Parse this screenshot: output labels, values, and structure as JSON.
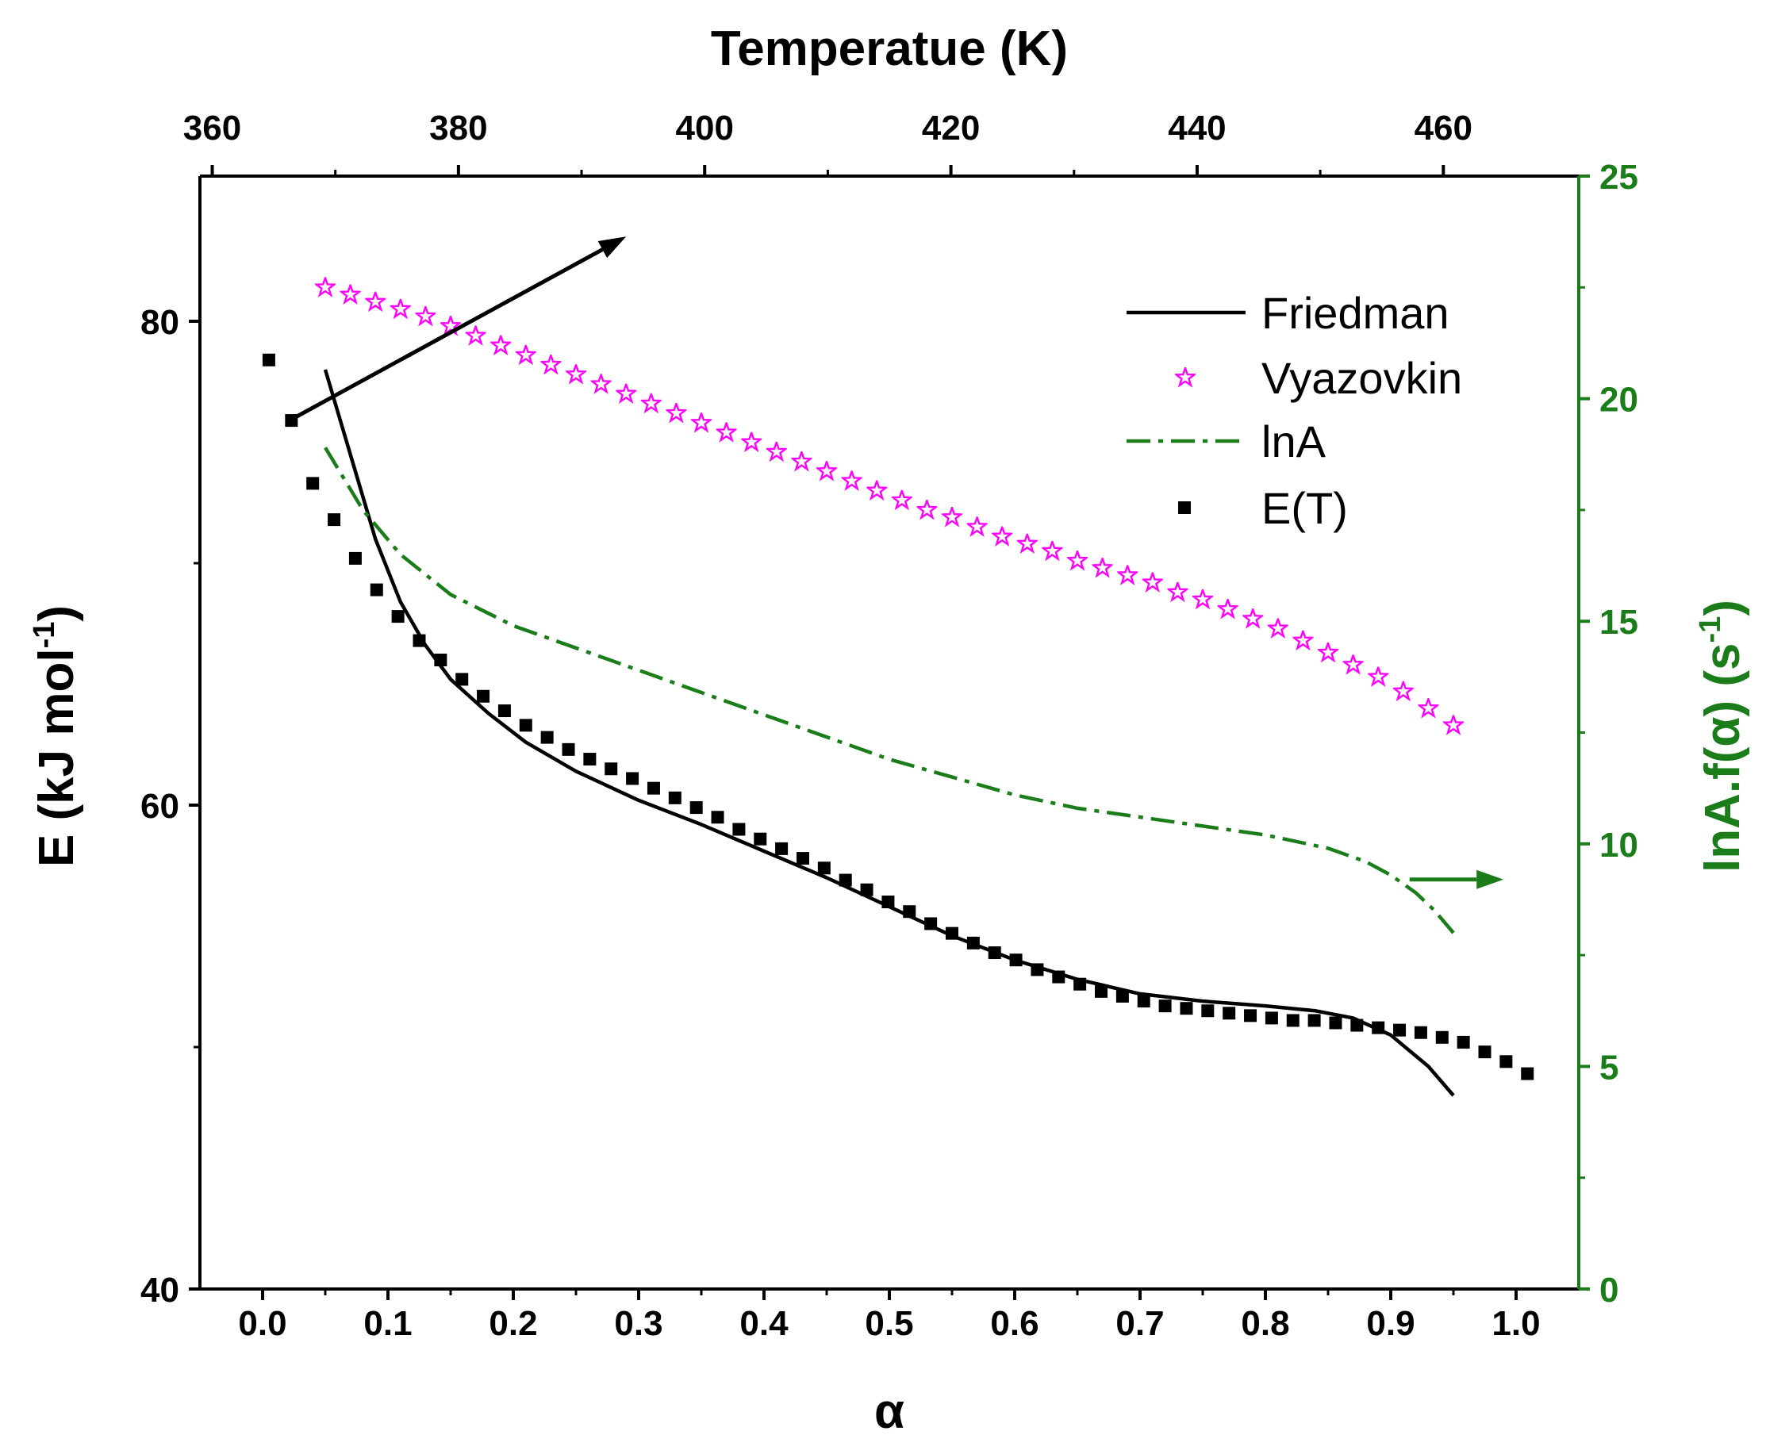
{
  "chart_data": {
    "type": "line",
    "title": "",
    "xlabel": "α",
    "x2label": "Temperatue (K)",
    "ylabel_left": "E (kJ mol",
    "ylabel_left_sup": "-1",
    "ylabel_left_end": ")",
    "ylabel_right": "lnA.f(α) (s",
    "ylabel_right_sup": "-1",
    "ylabel_right_end": ")",
    "xlim": [
      -0.05,
      1.05
    ],
    "x2lim": [
      359.0,
      471.0
    ],
    "ylim_left": [
      40,
      86
    ],
    "ylim_right": [
      0,
      25
    ],
    "xticks": [
      "0.0",
      "0.1",
      "0.2",
      "0.3",
      "0.4",
      "0.5",
      "0.6",
      "0.7",
      "0.8",
      "0.9",
      "1.0"
    ],
    "x2ticks": [
      "360",
      "380",
      "400",
      "420",
      "440",
      "460"
    ],
    "yticks_left": [
      "40",
      "60",
      "80"
    ],
    "yticks_right": [
      "0",
      "5",
      "10",
      "15",
      "20",
      "25"
    ],
    "colors": {
      "friedman": "#000000",
      "vyazovkin": "#ff00ff",
      "lnA": "#1a7d1a",
      "ET": "#000000",
      "right_axis": "#1a7d1a"
    },
    "legend": [
      "Friedman",
      "Vyazovkin",
      "lnA",
      "E(T)"
    ],
    "legend_position": "top-right",
    "series": [
      {
        "name": "Friedman",
        "axis": "left",
        "style": "solid",
        "x": [
          0.05,
          0.07,
          0.09,
          0.11,
          0.13,
          0.15,
          0.18,
          0.21,
          0.25,
          0.3,
          0.35,
          0.4,
          0.45,
          0.5,
          0.55,
          0.6,
          0.65,
          0.7,
          0.75,
          0.8,
          0.84,
          0.87,
          0.9,
          0.93,
          0.95
        ],
        "y": [
          78.0,
          74.5,
          71.0,
          68.4,
          66.6,
          65.2,
          63.8,
          62.6,
          61.4,
          60.2,
          59.2,
          58.1,
          57.0,
          55.8,
          54.6,
          53.6,
          52.8,
          52.2,
          51.9,
          51.7,
          51.5,
          51.2,
          50.5,
          49.2,
          48.0
        ]
      },
      {
        "name": "Vyazovkin",
        "axis": "left",
        "style": "star",
        "x": [
          0.05,
          0.07,
          0.09,
          0.11,
          0.13,
          0.15,
          0.17,
          0.19,
          0.21,
          0.23,
          0.25,
          0.27,
          0.29,
          0.31,
          0.33,
          0.35,
          0.37,
          0.39,
          0.41,
          0.43,
          0.45,
          0.47,
          0.49,
          0.51,
          0.53,
          0.55,
          0.57,
          0.59,
          0.61,
          0.63,
          0.65,
          0.67,
          0.69,
          0.71,
          0.73,
          0.75,
          0.77,
          0.79,
          0.81,
          0.83,
          0.85,
          0.87,
          0.89,
          0.91,
          0.93,
          0.95
        ],
        "y": [
          81.4,
          81.1,
          80.8,
          80.5,
          80.2,
          79.8,
          79.4,
          79.0,
          78.6,
          78.2,
          77.8,
          77.4,
          77.0,
          76.6,
          76.2,
          75.8,
          75.4,
          75.0,
          74.6,
          74.2,
          73.8,
          73.4,
          73.0,
          72.6,
          72.2,
          71.9,
          71.5,
          71.1,
          70.8,
          70.5,
          70.1,
          69.8,
          69.5,
          69.2,
          68.8,
          68.5,
          68.1,
          67.7,
          67.3,
          66.8,
          66.3,
          65.8,
          65.3,
          64.7,
          64.0,
          63.3
        ]
      },
      {
        "name": "lnA",
        "axis": "right",
        "style": "dashdot",
        "x": [
          0.05,
          0.08,
          0.11,
          0.15,
          0.2,
          0.25,
          0.3,
          0.35,
          0.4,
          0.45,
          0.5,
          0.55,
          0.6,
          0.65,
          0.7,
          0.75,
          0.8,
          0.85,
          0.88,
          0.9,
          0.92,
          0.935,
          0.95
        ],
        "y": [
          18.9,
          17.5,
          16.5,
          15.6,
          14.9,
          14.4,
          13.9,
          13.4,
          12.9,
          12.4,
          11.9,
          11.5,
          11.1,
          10.8,
          10.6,
          10.4,
          10.2,
          9.9,
          9.6,
          9.3,
          8.9,
          8.5,
          8.0
        ]
      },
      {
        "name": "E(T)",
        "axis": "left",
        "style": "square",
        "x": [
          0.005,
          0.023,
          0.04,
          0.057,
          0.074,
          0.091,
          0.108,
          0.125,
          0.142,
          0.159,
          0.176,
          0.193,
          0.21,
          0.227,
          0.244,
          0.261,
          0.278,
          0.295,
          0.312,
          0.329,
          0.346,
          0.363,
          0.38,
          0.397,
          0.414,
          0.431,
          0.448,
          0.465,
          0.482,
          0.499,
          0.516,
          0.533,
          0.55,
          0.567,
          0.584,
          0.601,
          0.618,
          0.635,
          0.652,
          0.669,
          0.686,
          0.703,
          0.72,
          0.737,
          0.754,
          0.771,
          0.788,
          0.805,
          0.822,
          0.839,
          0.856,
          0.873,
          0.89,
          0.907,
          0.924,
          0.941,
          0.958,
          0.975,
          0.992,
          1.009
        ],
        "y": [
          78.4,
          75.9,
          73.3,
          71.8,
          70.2,
          68.9,
          67.8,
          66.8,
          66.0,
          65.2,
          64.5,
          63.9,
          63.3,
          62.8,
          62.3,
          61.9,
          61.5,
          61.1,
          60.7,
          60.3,
          59.9,
          59.5,
          59.0,
          58.6,
          58.2,
          57.8,
          57.4,
          56.9,
          56.5,
          56.0,
          55.6,
          55.1,
          54.7,
          54.3,
          53.9,
          53.6,
          53.2,
          52.9,
          52.6,
          52.3,
          52.1,
          51.9,
          51.7,
          51.6,
          51.5,
          51.4,
          51.3,
          51.2,
          51.1,
          51.1,
          51.0,
          50.9,
          50.8,
          50.7,
          50.6,
          50.4,
          50.2,
          49.8,
          49.4,
          48.9
        ]
      }
    ],
    "annotations": [
      {
        "type": "arrow",
        "x1": 0.025,
        "y1": 76.0,
        "x2": 0.29,
        "y2": 83.5,
        "axis": "left",
        "color": "#000000"
      },
      {
        "type": "arrow",
        "x1": 0.915,
        "y1": 9.2,
        "x2": 0.99,
        "y2": 9.2,
        "axis": "right",
        "color": "#1a7d1a"
      }
    ]
  }
}
